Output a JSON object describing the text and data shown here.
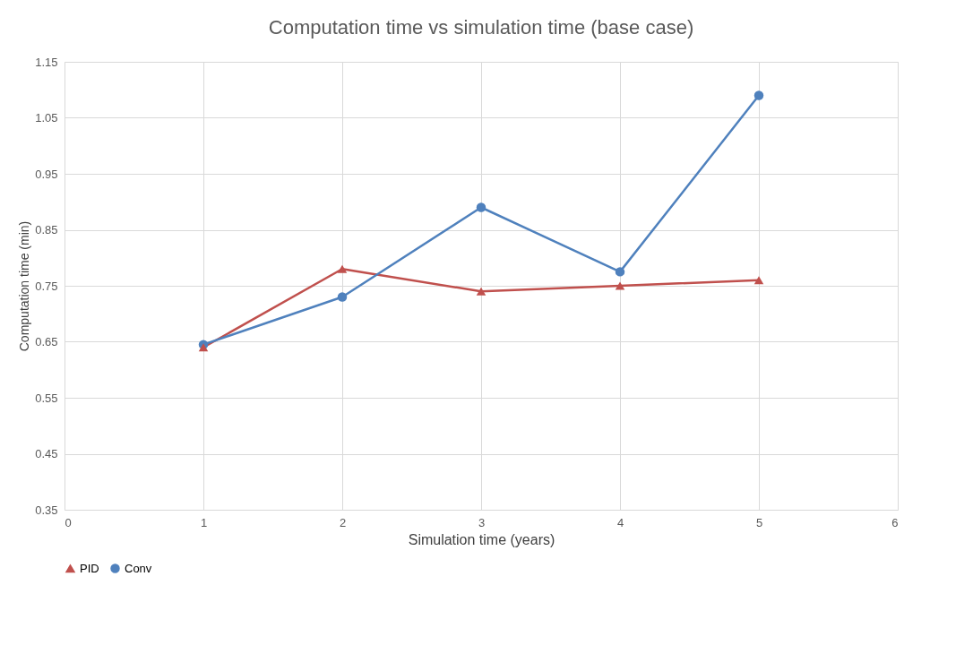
{
  "chart_data": {
    "type": "line",
    "title": "Computation time vs simulation time (base case)",
    "xlabel": "Simulation time (years)",
    "ylabel": "Computation time (min)",
    "x": [
      1,
      2,
      3,
      4,
      5
    ],
    "series": [
      {
        "name": "PID",
        "color": "#c0504d",
        "marker": "triangle",
        "values": [
          0.64,
          0.78,
          0.74,
          0.75,
          0.76
        ]
      },
      {
        "name": "Conv",
        "color": "#4f81bd",
        "marker": "circle",
        "values": [
          0.645,
          0.73,
          0.89,
          0.775,
          1.09
        ]
      }
    ],
    "xlim": [
      0,
      6
    ],
    "xticks": [
      0,
      1,
      2,
      3,
      4,
      5,
      6
    ],
    "ylim": [
      0.35,
      1.15
    ],
    "yticks": [
      0.35,
      0.45,
      0.55,
      0.65,
      0.75,
      0.85,
      0.95,
      1.05,
      1.15
    ],
    "grid": true,
    "legend": "bottom",
    "line_style": "solid"
  }
}
